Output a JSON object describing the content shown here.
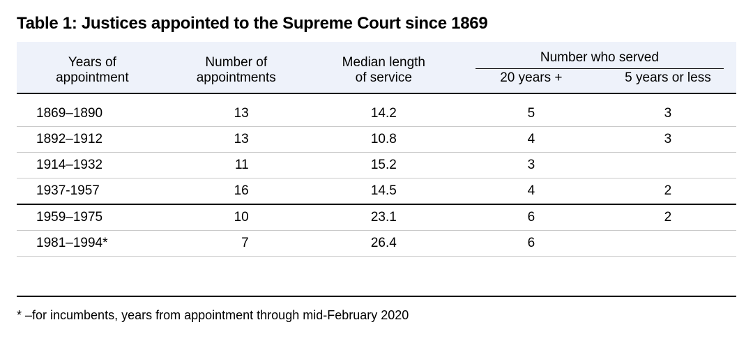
{
  "title": "Table 1: Justices appointed to the Supreme Court since 1869",
  "columns": {
    "years": {
      "line1": "Years of",
      "line2": "appointment"
    },
    "appts": {
      "line1": "Number of",
      "line2": "appointments"
    },
    "median": {
      "line1": "Median length",
      "line2": "of service"
    },
    "served_group": "Number who served",
    "served20": "20 years +",
    "served5": "5 years or less"
  },
  "rows": [
    {
      "years": "1869–1890",
      "appts": "13",
      "median": "14.2",
      "served20": "5",
      "served5": "3"
    },
    {
      "years": "1892–1912",
      "appts": "13",
      "median": "10.8",
      "served20": "4",
      "served5": "3"
    },
    {
      "years": "1914–1932",
      "appts": "11",
      "median": "15.2",
      "served20": "3",
      "served5": ""
    },
    {
      "years": "1937-1957",
      "appts": "16",
      "median": "14.5",
      "served20": "4",
      "served5": "2"
    },
    {
      "years": "1959–1975",
      "appts": "10",
      "median": "23.1",
      "served20": "6",
      "served5": "2"
    },
    {
      "years": "1981–1994*",
      "appts": "7",
      "median": "26.4",
      "served20": "6",
      "served5": ""
    }
  ],
  "footnote": "* –for incumbents, years from appointment through mid-February 2020",
  "style": {
    "type": "table",
    "background_color": "#ffffff",
    "header_background": "#eef2fa",
    "text_color": "#000000",
    "rule_color": "#000000",
    "row_rule_color": "#c9c9c9",
    "title_fontsize": 24,
    "title_fontweight": 900,
    "body_fontsize": 19,
    "footnote_fontsize": 18,
    "column_widths_pct": [
      21,
      19,
      22,
      19,
      19
    ],
    "thick_rule_after_row_index": 3,
    "header_rule_width": 2.5,
    "row_rule_width": 1
  }
}
